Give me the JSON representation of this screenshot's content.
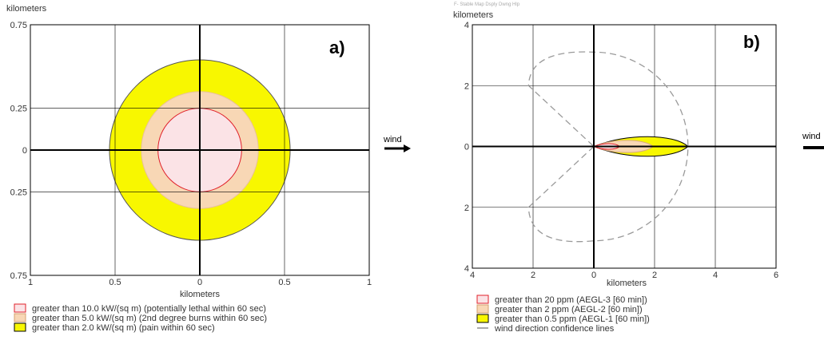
{
  "colors": {
    "zone_red": "#e0202a",
    "zone_red_fill": "#fbe3e6",
    "zone_orange": "#f8d7b5",
    "zone_yellow": "#f8f700",
    "grid": "#000000",
    "confidence_line": "#9a9a9a"
  },
  "wind_label": "wind",
  "menu_fragment": "F- Stable Map Dsply Dwng Hlp",
  "chart_data": [
    {
      "type": "area",
      "panel_label": "a)",
      "ylabel": "kilometers",
      "xlabel": "kilometers",
      "xlim": [
        -1,
        1
      ],
      "ylim": [
        -0.75,
        0.75
      ],
      "x_ticks": [
        {
          "value": -1,
          "label": "1"
        },
        {
          "value": -0.5,
          "label": "0.5"
        },
        {
          "value": 0,
          "label": "0"
        },
        {
          "value": 0.5,
          "label": "0.5"
        },
        {
          "value": 1,
          "label": "1"
        }
      ],
      "y_ticks": [
        {
          "value": 0.75,
          "label": "0.75"
        },
        {
          "value": 0.25,
          "label": "0.25"
        },
        {
          "value": 0,
          "label": "0"
        },
        {
          "value": -0.25,
          "label": "0.25"
        },
        {
          "value": -0.75,
          "label": "0.75"
        }
      ],
      "grid": true,
      "series": [
        {
          "name": "greater than 2.0 kW/(sq m) (pain within 60 sec)",
          "shape": "circle",
          "center": [
            0,
            0
          ],
          "radius_km": 0.54,
          "color": "#f8f700"
        },
        {
          "name": "greater than 5.0 kW/(sq m) (2nd degree burns within 60 sec)",
          "shape": "circle",
          "center": [
            0,
            0
          ],
          "radius_km": 0.35,
          "color": "#f8d7b5"
        },
        {
          "name": "greater than 10.0 kW/(sq m) (potentially lethal within 60 sec)",
          "shape": "circle",
          "center": [
            0,
            0
          ],
          "radius_km": 0.25,
          "color": "#e0202a"
        }
      ],
      "legend": [
        {
          "label": "greater than 10.0 kW/(sq m) (potentially lethal within 60 sec)",
          "swatch": "red"
        },
        {
          "label": "greater than 5.0 kW/(sq m) (2nd degree burns within 60 sec)",
          "swatch": "orange"
        },
        {
          "label": "greater than 2.0 kW/(sq m) (pain within 60 sec)",
          "swatch": "yellow"
        }
      ]
    },
    {
      "type": "area",
      "panel_label": "b)",
      "ylabel": "kilometers",
      "xlabel": "kilometers",
      "xlim": [
        -4,
        6
      ],
      "ylim": [
        -4,
        4
      ],
      "x_ticks": [
        {
          "value": -4,
          "label": "4"
        },
        {
          "value": -2,
          "label": "2"
        },
        {
          "value": 0,
          "label": "0"
        },
        {
          "value": 2,
          "label": "2"
        },
        {
          "value": 4,
          "label": "4"
        },
        {
          "value": 6,
          "label": "6"
        }
      ],
      "y_ticks": [
        {
          "value": 4,
          "label": "4"
        },
        {
          "value": 2,
          "label": "2"
        },
        {
          "value": 0,
          "label": "0"
        },
        {
          "value": -2,
          "label": "2"
        },
        {
          "value": -4,
          "label": "4"
        }
      ],
      "grid": true,
      "series": [
        {
          "name": "greater than 0.5 ppm (AEGL-1 [60 min])",
          "shape": "plume",
          "length_km": 3.1,
          "halfwidth_km": 0.42,
          "color": "#f8f700"
        },
        {
          "name": "greater than 2 ppm (AEGL-2 [60 min])",
          "shape": "plume",
          "length_km": 1.95,
          "halfwidth_km": 0.26,
          "color": "#f8d7b5"
        },
        {
          "name": "greater than 20 ppm (AEGL-3 [60 min])",
          "shape": "plume",
          "length_km": 0.85,
          "halfwidth_km": 0.12,
          "color": "#e0202a"
        },
        {
          "name": "wind direction confidence lines",
          "shape": "confidence",
          "radius_km": 3.1,
          "color": "#9a9a9a"
        }
      ],
      "legend": [
        {
          "label": "greater than 20 ppm (AEGL-3 [60 min])",
          "swatch": "red"
        },
        {
          "label": "greater than 2 ppm (AEGL-2 [60 min])",
          "swatch": "orange"
        },
        {
          "label": "greater than 0.5 ppm (AEGL-1 [60 min])",
          "swatch": "yellow"
        },
        {
          "label": "wind direction confidence lines",
          "swatch": "line"
        }
      ]
    }
  ]
}
